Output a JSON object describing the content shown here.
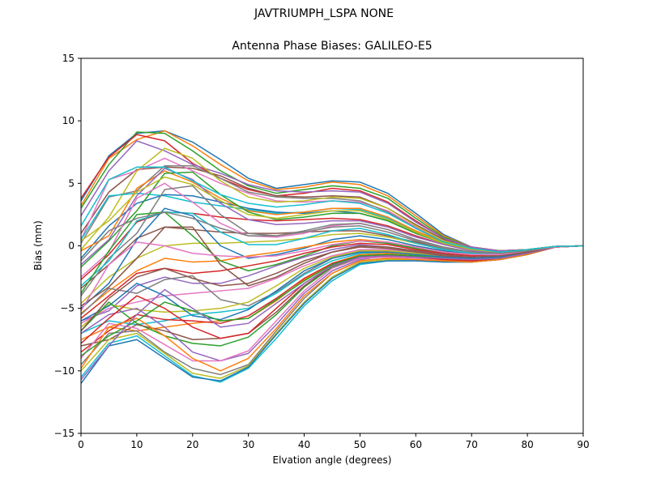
{
  "figure": {
    "suptitle": "JAVTRIUMPH_LSPA NONE"
  },
  "chart_data": {
    "type": "line",
    "title": "Antenna Phase Biases: GALILEO-E5",
    "xlabel": "Elvation angle (degrees)",
    "ylabel": "Bias (mm)",
    "xlim": [
      0,
      90
    ],
    "ylim": [
      -15,
      15
    ],
    "xticks": [
      0,
      10,
      20,
      30,
      40,
      50,
      60,
      70,
      80,
      90
    ],
    "yticks": [
      -15,
      -10,
      -5,
      0,
      5,
      10,
      15
    ],
    "grid": false,
    "legend": "none",
    "colors": [
      "#1f77b4",
      "#ff7f0e",
      "#2ca02c",
      "#d62728",
      "#9467bd",
      "#8c564b",
      "#e377c2",
      "#7f7f7f",
      "#bcbd22",
      "#17becf"
    ],
    "x": [
      0,
      5,
      10,
      15,
      20,
      25,
      30,
      35,
      40,
      45,
      50,
      55,
      60,
      65,
      70,
      75,
      80,
      85,
      90
    ],
    "series": [
      {
        "values": [
          3.6,
          7.2,
          9.0,
          9.2,
          8.3,
          6.9,
          5.4,
          4.6,
          4.9,
          5.2,
          5.1,
          4.2,
          2.6,
          0.9,
          -0.1,
          -0.4,
          -0.3,
          -0.05,
          0
        ]
      },
      {
        "values": [
          3.2,
          7.0,
          8.5,
          9.2,
          8.0,
          6.5,
          5.2,
          4.5,
          4.7,
          5.1,
          4.9,
          4.0,
          2.4,
          0.8,
          -0.1,
          -0.4,
          -0.3,
          -0.05,
          0
        ]
      },
      {
        "values": [
          3.0,
          6.5,
          9.1,
          9.0,
          7.6,
          6.0,
          4.8,
          4.2,
          4.5,
          4.8,
          4.6,
          3.8,
          2.2,
          0.7,
          -0.1,
          -0.4,
          -0.3,
          -0.05,
          0
        ]
      },
      {
        "values": [
          3.8,
          7.1,
          8.9,
          8.4,
          6.6,
          5.4,
          4.5,
          4.0,
          4.2,
          4.6,
          4.4,
          3.5,
          2.0,
          0.6,
          -0.1,
          -0.4,
          -0.3,
          -0.05,
          0
        ]
      },
      {
        "values": [
          2.4,
          6.0,
          8.4,
          7.6,
          6.5,
          5.8,
          4.9,
          4.4,
          4.3,
          4.4,
          4.3,
          3.4,
          1.9,
          0.6,
          -0.1,
          -0.4,
          -0.3,
          -0.05,
          0
        ]
      },
      {
        "values": [
          1.0,
          4.3,
          6.1,
          6.3,
          6.2,
          5.6,
          4.6,
          4.0,
          3.9,
          4.0,
          3.9,
          3.0,
          1.7,
          0.5,
          -0.2,
          -0.5,
          -0.3,
          -0.05,
          0
        ]
      },
      {
        "values": [
          0.5,
          5.3,
          6.0,
          7.0,
          6.0,
          5.0,
          4.2,
          3.6,
          3.5,
          3.6,
          3.5,
          2.8,
          1.5,
          0.4,
          -0.2,
          -0.5,
          -0.3,
          -0.05,
          0
        ]
      },
      {
        "values": [
          0.2,
          3.9,
          4.4,
          6.4,
          6.4,
          5.4,
          4.3,
          3.9,
          3.8,
          3.8,
          3.6,
          2.7,
          1.4,
          0.3,
          -0.2,
          -0.5,
          -0.3,
          -0.05,
          0
        ]
      },
      {
        "values": [
          -0.3,
          2.3,
          6.0,
          7.8,
          7.0,
          5.2,
          3.9,
          3.5,
          3.6,
          3.9,
          3.8,
          3.0,
          1.6,
          0.4,
          -0.2,
          -0.5,
          -0.3,
          -0.05,
          0
        ]
      },
      {
        "values": [
          0.5,
          4.0,
          4.2,
          4.0,
          3.5,
          3.2,
          2.9,
          2.6,
          2.7,
          3.0,
          2.9,
          2.2,
          1.1,
          0.2,
          -0.3,
          -0.5,
          -0.3,
          -0.05,
          0
        ]
      },
      {
        "values": [
          -1.0,
          1.6,
          3.4,
          4.1,
          4.0,
          3.5,
          3.0,
          2.7,
          2.6,
          2.8,
          2.6,
          2.0,
          1.0,
          0.2,
          -0.3,
          -0.5,
          -0.3,
          -0.05,
          0
        ]
      },
      {
        "values": [
          -0.4,
          0.8,
          4.6,
          6.0,
          5.1,
          3.8,
          2.8,
          2.5,
          2.7,
          3.0,
          3.0,
          2.3,
          1.2,
          0.3,
          -0.3,
          -0.5,
          -0.3,
          -0.05,
          0
        ]
      },
      {
        "values": [
          -1.7,
          0.4,
          2.8,
          5.8,
          5.9,
          4.1,
          2.7,
          2.1,
          2.3,
          2.6,
          2.6,
          2.0,
          1.0,
          0.2,
          -0.3,
          -0.5,
          -0.3,
          -0.05,
          0
        ]
      },
      {
        "values": [
          -2.7,
          -0.7,
          1.9,
          2.7,
          2.6,
          2.3,
          2.1,
          2.0,
          2.1,
          2.2,
          2.1,
          1.6,
          0.8,
          0.1,
          -0.3,
          -0.5,
          -0.3,
          -0.05,
          0
        ]
      },
      {
        "values": [
          -1.5,
          0.5,
          4.0,
          6.2,
          5.3,
          3.4,
          2.1,
          1.7,
          1.8,
          2.0,
          2.0,
          1.5,
          0.7,
          0.1,
          -0.4,
          -0.6,
          -0.4,
          -0.05,
          0
        ]
      },
      {
        "values": [
          -3.4,
          -1.5,
          0.6,
          1.5,
          1.3,
          1.1,
          1.0,
          1.0,
          1.1,
          1.2,
          1.2,
          0.8,
          0.3,
          -0.2,
          -0.5,
          -0.6,
          -0.4,
          -0.05,
          0
        ]
      },
      {
        "values": [
          -2.5,
          -0.5,
          3.8,
          5.0,
          3.5,
          1.8,
          0.8,
          0.7,
          1.0,
          1.6,
          1.8,
          1.3,
          0.5,
          -0.1,
          -0.5,
          -0.6,
          -0.4,
          -0.05,
          0
        ]
      },
      {
        "values": [
          -4.0,
          -1.0,
          1.0,
          4.5,
          4.8,
          2.5,
          1.0,
          0.8,
          1.1,
          1.5,
          1.6,
          1.1,
          0.4,
          -0.2,
          -0.5,
          -0.6,
          -0.4,
          -0.05,
          0
        ]
      },
      {
        "values": [
          -4.6,
          -2.5,
          -1.0,
          0.0,
          0.2,
          0.2,
          0.3,
          0.4,
          0.6,
          0.9,
          1.0,
          0.7,
          0.2,
          -0.3,
          -0.6,
          -0.7,
          -0.4,
          -0.1,
          0
        ]
      },
      {
        "values": [
          -3.2,
          -1.2,
          2.0,
          2.7,
          2.6,
          1.1,
          0.1,
          0.1,
          0.6,
          1.2,
          1.4,
          0.9,
          0.2,
          -0.3,
          -0.6,
          -0.7,
          -0.4,
          -0.1,
          0
        ]
      },
      {
        "values": [
          -5.0,
          -3.0,
          0.5,
          3.0,
          2.4,
          0.0,
          -1.0,
          -0.7,
          -0.2,
          0.5,
          0.8,
          0.5,
          0.0,
          -0.4,
          -0.7,
          -0.7,
          -0.4,
          -0.1,
          0
        ]
      },
      {
        "values": [
          -5.4,
          -3.6,
          -2.0,
          -1.0,
          -1.3,
          -1.2,
          -0.8,
          -0.5,
          -0.1,
          0.3,
          0.5,
          0.3,
          -0.1,
          -0.5,
          -0.7,
          -0.7,
          -0.4,
          -0.1,
          0
        ]
      },
      {
        "values": [
          -3.8,
          -0.4,
          2.5,
          2.7,
          0.8,
          -1.2,
          -2.0,
          -1.5,
          -0.8,
          0.0,
          0.4,
          0.2,
          -0.2,
          -0.6,
          -0.8,
          -0.8,
          -0.5,
          -0.1,
          0
        ]
      },
      {
        "values": [
          -5.8,
          -4.0,
          -2.2,
          -1.8,
          -2.2,
          -2.0,
          -1.6,
          -1.2,
          -0.6,
          -0.1,
          0.2,
          0.1,
          -0.3,
          -0.6,
          -0.8,
          -0.8,
          -0.5,
          -0.1,
          0
        ]
      },
      {
        "values": [
          -6.0,
          -5.2,
          -3.2,
          -2.5,
          -3.0,
          -3.0,
          -2.4,
          -1.6,
          -0.9,
          -0.3,
          0.1,
          -0.1,
          -0.4,
          -0.7,
          -0.9,
          -0.8,
          -0.5,
          -0.1,
          0
        ]
      },
      {
        "values": [
          -4.8,
          -3.3,
          -1.0,
          1.5,
          1.5,
          -1.5,
          -3.2,
          -2.5,
          -1.4,
          -0.5,
          0.0,
          -0.1,
          -0.4,
          -0.7,
          -0.9,
          -0.8,
          -0.5,
          -0.1,
          0
        ]
      },
      {
        "values": [
          -6.2,
          -5.0,
          -4.5,
          -4.0,
          -3.8,
          -3.6,
          -3.4,
          -2.6,
          -1.6,
          -0.8,
          -0.3,
          -0.3,
          -0.5,
          -0.8,
          -0.9,
          -0.8,
          -0.5,
          -0.1,
          0
        ]
      },
      {
        "values": [
          -5.5,
          -3.4,
          -3.8,
          -2.7,
          -2.4,
          -4.3,
          -4.8,
          -3.7,
          -2.2,
          -1.0,
          -0.4,
          -0.4,
          -0.6,
          -0.8,
          -1.0,
          -0.9,
          -0.5,
          -0.1,
          0
        ]
      },
      {
        "values": [
          -6.5,
          -4.7,
          -5.1,
          -5.3,
          -5.2,
          -5.0,
          -4.5,
          -3.2,
          -1.8,
          -0.9,
          -0.4,
          -0.4,
          -0.6,
          -0.8,
          -1.0,
          -0.9,
          -0.5,
          -0.1,
          0
        ]
      },
      {
        "values": [
          -7.0,
          -6.0,
          -6.3,
          -6.0,
          -5.5,
          -5.3,
          -5.0,
          -3.8,
          -2.3,
          -1.2,
          -0.6,
          -0.5,
          -0.7,
          -0.9,
          -1.0,
          -0.9,
          -0.5,
          -0.1,
          0
        ]
      },
      {
        "values": [
          -6.0,
          -4.8,
          -3.0,
          -4.0,
          -5.6,
          -5.9,
          -5.1,
          -3.6,
          -2.0,
          -1.0,
          -0.5,
          -0.5,
          -0.7,
          -0.9,
          -1.0,
          -0.9,
          -0.5,
          -0.1,
          0
        ]
      },
      {
        "values": [
          -7.5,
          -6.5,
          -6.8,
          -6.5,
          -6.2,
          -6.0,
          -5.8,
          -4.4,
          -2.7,
          -1.4,
          -0.7,
          -0.6,
          -0.8,
          -1.0,
          -1.1,
          -1.0,
          -0.6,
          -0.1,
          0
        ]
      },
      {
        "values": [
          -6.8,
          -4.5,
          -6.2,
          -7.2,
          -7.8,
          -8.0,
          -7.3,
          -5.5,
          -3.3,
          -1.7,
          -0.9,
          -0.7,
          -0.8,
          -1.0,
          -1.1,
          -1.0,
          -0.6,
          -0.1,
          0
        ]
      },
      {
        "values": [
          -8.5,
          -6.8,
          -5.5,
          -5.9,
          -6.0,
          -6.2,
          -5.6,
          -4.2,
          -2.6,
          -1.4,
          -0.8,
          -0.7,
          -0.9,
          -1.0,
          -1.1,
          -1.0,
          -0.6,
          -0.1,
          0
        ]
      },
      {
        "values": [
          -7.0,
          -5.5,
          -5.0,
          -6.5,
          -8.5,
          -9.2,
          -8.6,
          -6.3,
          -3.8,
          -2.0,
          -1.1,
          -0.8,
          -0.9,
          -1.1,
          -1.2,
          -1.0,
          -0.6,
          -0.1,
          0
        ]
      },
      {
        "values": [
          -8.0,
          -7.5,
          -6.3,
          -6.8,
          -7.5,
          -7.4,
          -7.0,
          -5.3,
          -3.2,
          -1.6,
          -0.9,
          -0.8,
          -0.9,
          -1.1,
          -1.2,
          -1.0,
          -0.6,
          -0.1,
          0
        ]
      },
      {
        "values": [
          -9.0,
          -6.2,
          -6.6,
          -7.9,
          -9.2,
          -9.2,
          -8.4,
          -6.0,
          -3.6,
          -1.8,
          -1.0,
          -0.9,
          -1.0,
          -1.1,
          -1.2,
          -1.0,
          -0.6,
          -0.1,
          0
        ]
      },
      {
        "values": [
          -9.5,
          -7.0,
          -6.8,
          -8.5,
          -9.8,
          -10.3,
          -9.5,
          -6.8,
          -4.2,
          -2.2,
          -1.2,
          -1.0,
          -1.1,
          -1.2,
          -1.3,
          -1.1,
          -0.7,
          -0.1,
          0
        ]
      },
      {
        "values": [
          -10.0,
          -7.5,
          -7.0,
          -8.6,
          -10.2,
          -10.6,
          -9.6,
          -7.0,
          -4.5,
          -2.5,
          -1.3,
          -1.1,
          -1.1,
          -1.2,
          -1.3,
          -1.1,
          -0.7,
          -0.1,
          0
        ]
      },
      {
        "values": [
          -10.5,
          -7.8,
          -7.2,
          -8.8,
          -10.4,
          -10.9,
          -9.8,
          -7.4,
          -4.8,
          -2.8,
          -1.5,
          -1.2,
          -1.2,
          -1.3,
          -1.3,
          -1.1,
          -0.7,
          -0.1,
          0
        ]
      },
      {
        "values": [
          -11.0,
          -8.0,
          -7.5,
          -9.0,
          -10.5,
          -10.8,
          -9.7,
          -7.1,
          -4.6,
          -2.6,
          -1.4,
          -1.2,
          -1.2,
          -1.3,
          -1.3,
          -1.1,
          -0.7,
          -0.1,
          0
        ]
      },
      {
        "values": [
          -9.8,
          -6.5,
          -5.8,
          -7.2,
          -9.0,
          -10.0,
          -9.0,
          -6.6,
          -4.0,
          -2.2,
          -1.2,
          -1.0,
          -1.1,
          -1.2,
          -1.3,
          -1.1,
          -0.7,
          -0.1,
          0
        ]
      },
      {
        "values": [
          -8.8,
          -7.2,
          -6.0,
          -4.5,
          -5.2,
          -6.0,
          -5.8,
          -4.3,
          -2.8,
          -1.5,
          -0.8,
          -0.7,
          -0.8,
          -1.0,
          -1.1,
          -1.0,
          -0.6,
          -0.1,
          0
        ]
      },
      {
        "values": [
          -7.8,
          -5.8,
          -4.0,
          -5.0,
          -6.5,
          -7.4,
          -7.0,
          -5.0,
          -3.0,
          -1.6,
          -0.9,
          -0.8,
          -0.9,
          -1.1,
          -1.2,
          -1.0,
          -0.6,
          -0.1,
          0
        ]
      },
      {
        "values": [
          -10.7,
          -8.0,
          -5.5,
          -3.5,
          -5.0,
          -6.5,
          -6.2,
          -4.6,
          -3.0,
          -1.6,
          -0.9,
          -0.8,
          -0.9,
          -1.0,
          -1.1,
          -1.0,
          -0.6,
          -0.1,
          0
        ]
      },
      {
        "values": [
          -6.8,
          -4.2,
          -2.5,
          -1.8,
          -2.6,
          -3.2,
          -3.0,
          -2.2,
          -1.2,
          -0.5,
          -0.1,
          -0.2,
          -0.5,
          -0.8,
          -0.9,
          -0.8,
          -0.5,
          -0.1,
          0
        ]
      },
      {
        "values": [
          -5.2,
          -1.5,
          0.3,
          0.0,
          -0.6,
          -0.8,
          -0.9,
          -0.8,
          -0.4,
          0.1,
          0.4,
          0.3,
          -0.1,
          -0.5,
          -0.7,
          -0.7,
          -0.4,
          -0.1,
          0
        ]
      },
      {
        "values": [
          -1.2,
          1.2,
          2.2,
          2.7,
          2.2,
          1.4,
          0.8,
          0.8,
          1.2,
          1.7,
          1.8,
          1.3,
          0.5,
          -0.1,
          -0.5,
          -0.6,
          -0.4,
          -0.05,
          0
        ]
      },
      {
        "values": [
          0.4,
          2.0,
          4.3,
          5.5,
          4.9,
          3.6,
          2.5,
          2.2,
          2.5,
          2.8,
          2.8,
          2.1,
          1.1,
          0.2,
          -0.3,
          -0.5,
          -0.3,
          -0.05,
          0
        ]
      },
      {
        "values": [
          1.6,
          5.3,
          6.3,
          6.3,
          5.2,
          4.1,
          3.4,
          3.1,
          3.3,
          3.6,
          3.4,
          2.6,
          1.4,
          0.3,
          -0.2,
          -0.5,
          -0.3,
          -0.05,
          0
        ]
      }
    ]
  }
}
